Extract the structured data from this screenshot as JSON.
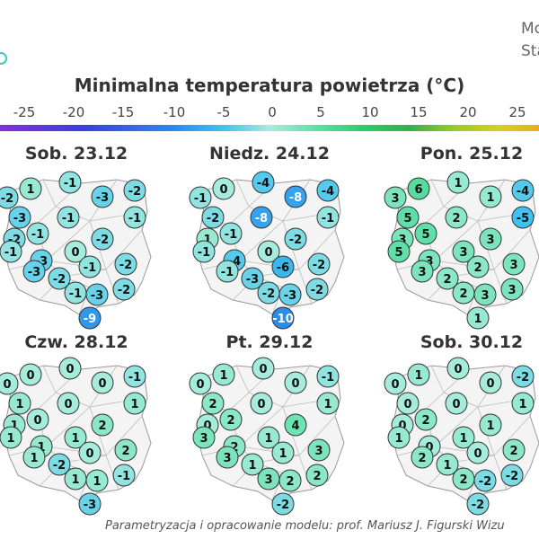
{
  "header": {
    "right_line1": "Mo",
    "right_line2": "Sta"
  },
  "title": "Minimalna temperatura powietrza (°C)",
  "scale": {
    "labels": [
      "-25",
      "-20",
      "-15",
      "-10",
      "-5",
      "0",
      "5",
      "10",
      "15",
      "20",
      "25"
    ],
    "gradient_stops": [
      {
        "value": -30,
        "color": "#8a2fd6"
      },
      {
        "value": -20,
        "color": "#3b3fd8"
      },
      {
        "value": -10,
        "color": "#2c8cec"
      },
      {
        "value": -5,
        "color": "#3fc2f0"
      },
      {
        "value": 0,
        "color": "#a6ecdc"
      },
      {
        "value": 5,
        "color": "#5fdfa8"
      },
      {
        "value": 10,
        "color": "#2ecc70"
      },
      {
        "value": 15,
        "color": "#33b04a"
      },
      {
        "value": 20,
        "color": "#9acb2a"
      },
      {
        "value": 25,
        "color": "#d8d01c"
      },
      {
        "value": 30,
        "color": "#f0a020"
      }
    ]
  },
  "panels": [
    {
      "title": "Sob. 23.12",
      "stations": [
        "-2",
        "1",
        "-1",
        "-3",
        "-2",
        "-3",
        "-1",
        "-1",
        "-1",
        "-2",
        "-3",
        "0",
        "-2",
        "-1",
        "-3",
        "-2",
        "-1",
        "-2",
        "-1",
        "-3",
        "-2",
        "-9"
      ]
    },
    {
      "title": "Niedz. 24.12",
      "stations": [
        "-1",
        "0",
        "-4",
        "-8",
        "-4",
        "-2",
        "-1",
        "-8",
        "-1",
        "1",
        "-4",
        "0",
        "-2",
        "-1",
        "-1",
        "-3",
        "-6",
        "-2",
        "-2",
        "-3",
        "-2",
        "-10"
      ]
    },
    {
      "title": "Pon. 25.12",
      "stations": [
        "3",
        "6",
        "1",
        "1",
        "-4",
        "5",
        "5",
        "2",
        "-5",
        "3",
        "3",
        "3",
        "3",
        "5",
        "3",
        "2",
        "2",
        "3",
        "2",
        "3",
        "3",
        "1"
      ]
    },
    {
      "title": "Czw. 28.12",
      "stations": [
        "0",
        "0",
        "0",
        "0",
        "-1",
        "1",
        "0",
        "0",
        "1",
        "1",
        "1",
        "1",
        "2",
        "1",
        "1",
        "-2",
        "0",
        "2",
        "1",
        "1",
        "-1",
        "-3"
      ]
    },
    {
      "title": "Pt. 29.12",
      "stations": [
        "0",
        "1",
        "0",
        "0",
        "-1",
        "2",
        "2",
        "0",
        "1",
        "0",
        "2",
        "1",
        "4",
        "3",
        "3",
        "1",
        "1",
        "3",
        "3",
        "2",
        "2",
        "-2"
      ]
    },
    {
      "title": "Sob. 30.12",
      "stations": [
        "0",
        "1",
        "0",
        "0",
        "-2",
        "0",
        "2",
        "0",
        "1",
        "0",
        "0",
        "1",
        "1",
        "1",
        "2",
        "1",
        "0",
        "2",
        "2",
        "-2",
        "-2",
        "-2"
      ]
    }
  ],
  "footer": "Parametryzacja i opracowanie modelu: prof. Mariusz J. Figurski   Wizu"
}
